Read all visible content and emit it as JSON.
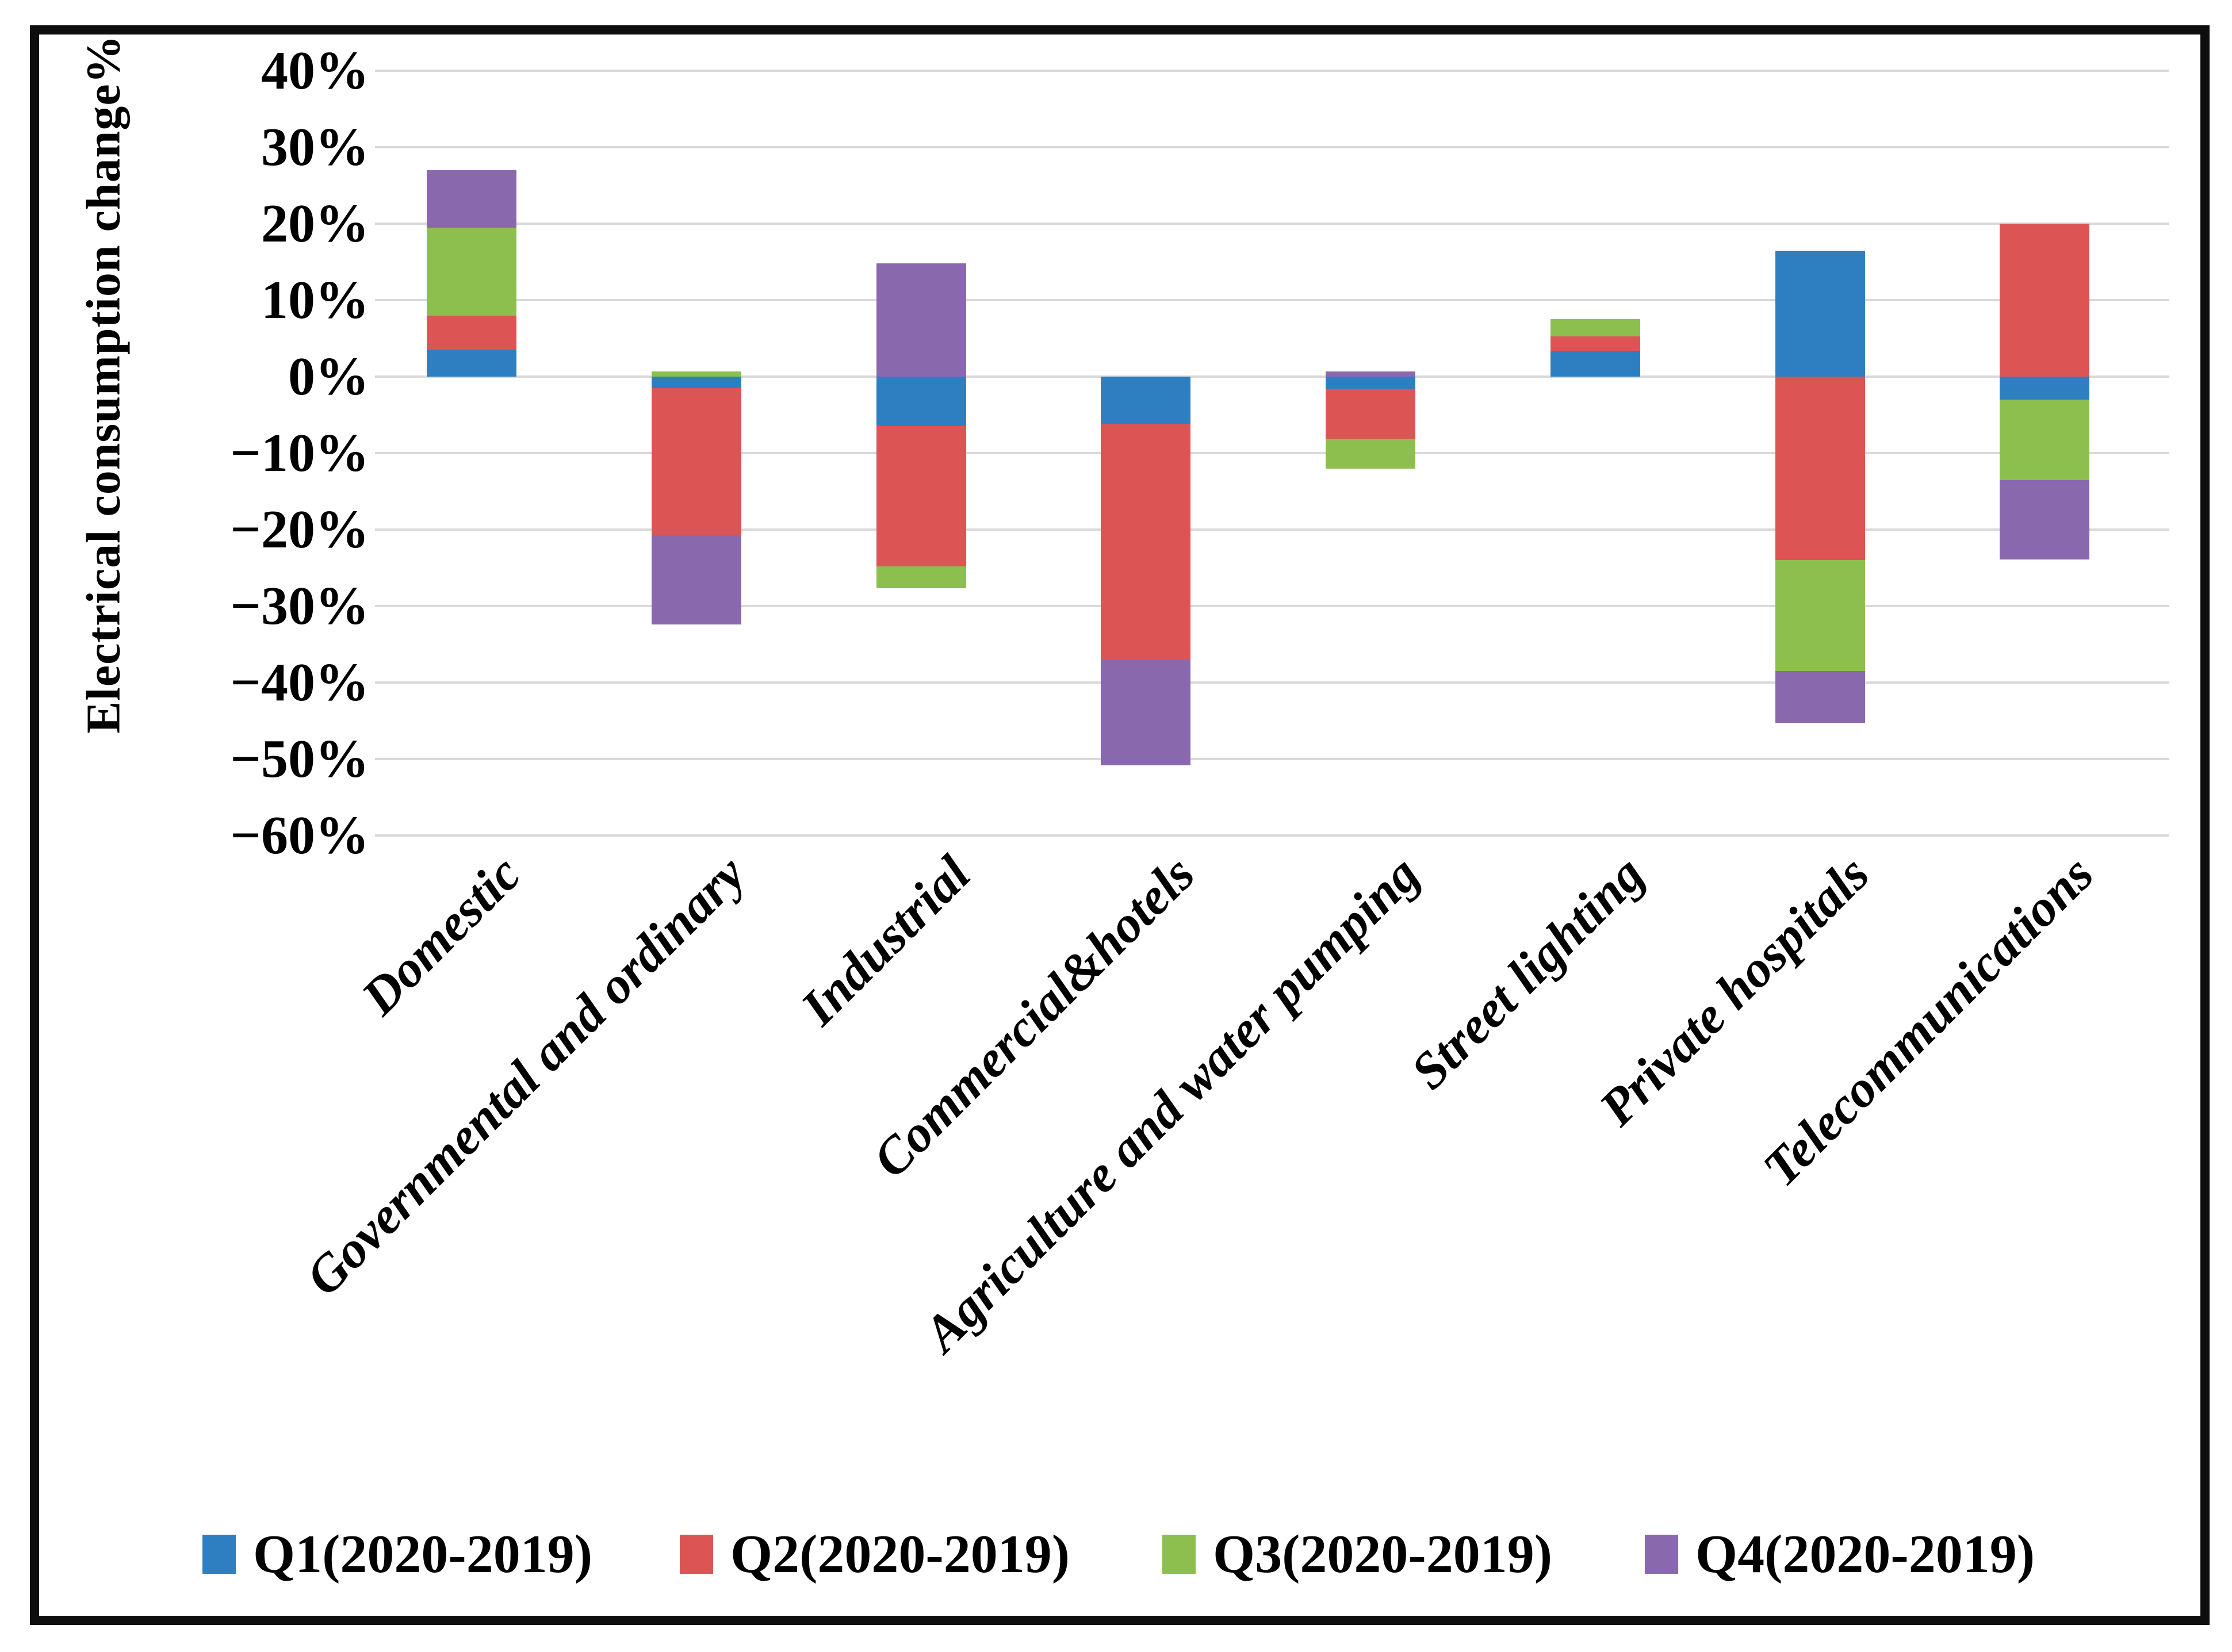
{
  "figure": {
    "background": "#ffffff",
    "border_color": "#0e0e0e",
    "gridline_color": "#d9d9d9"
  },
  "chart_data": {
    "type": "bar",
    "stacked": true,
    "title": "",
    "xlabel": "",
    "ylabel": "Electrical consumption change%",
    "ylim": [
      -60,
      40
    ],
    "ytick_step": 10,
    "ytick_labels": [
      "40%",
      "30%",
      "20%",
      "10%",
      "0%",
      "−10%",
      "−20%",
      "−30%",
      "−40%",
      "−50%",
      "−60%"
    ],
    "grid": true,
    "legend_position": "bottom",
    "categories": [
      "Domestic",
      "Governmental and ordinary",
      "Industrial",
      "Commercial&hotels",
      "Agriculture and water pumping",
      "Street lighting",
      "Private hospitals",
      "Telecommunications"
    ],
    "series": [
      {
        "name": "Q1(2020-2019)",
        "color": "#2e7fc1",
        "values": [
          3.5,
          -1.5,
          -6.5,
          -6.2,
          -1.6,
          3.3,
          16.5,
          -3.0
        ]
      },
      {
        "name": "Q2(2020-2019)",
        "color": "#dd5454",
        "values": [
          4.5,
          -19.2,
          -18.3,
          -30.8,
          -6.5,
          2.0,
          -24.0,
          20.0
        ]
      },
      {
        "name": "Q3(2020-2019)",
        "color": "#8cbf4e",
        "values": [
          11.5,
          0.7,
          -2.9,
          0,
          -3.9,
          2.2,
          -14.5,
          -10.5
        ]
      },
      {
        "name": "Q4(2020-2019)",
        "color": "#8a68ae",
        "values": [
          7.5,
          -11.7,
          14.8,
          -13.8,
          0.7,
          0,
          -6.8,
          -10.4
        ]
      }
    ]
  }
}
